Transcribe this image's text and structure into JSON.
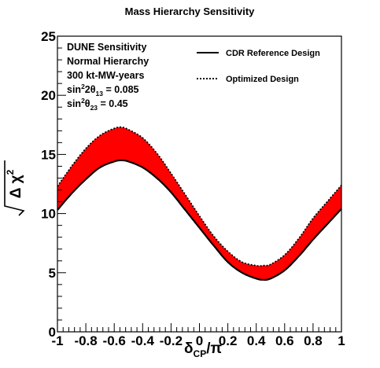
{
  "chart_data": {
    "type": "area",
    "title": "Mass Hierarchy Sensitivity",
    "xlim": [
      -1,
      1
    ],
    "ylim": [
      0,
      25
    ],
    "x_ticks": [
      "-1",
      "-0.8",
      "-0.6",
      "-0.4",
      "-0.2",
      "0",
      "0.2",
      "0.4",
      "0.6",
      "0.8",
      "1"
    ],
    "y_ticks": [
      "0",
      "5",
      "10",
      "15",
      "20",
      "25"
    ],
    "xlabel": {
      "base": "δ",
      "sub": "CP",
      "rest": "/π"
    },
    "ylabel": {
      "sqrt": "Δ χ",
      "sup": "2"
    },
    "info_lines": [
      {
        "text": "DUNE Sensitivity"
      },
      {
        "text": "Normal Hierarchy"
      },
      {
        "text": "300 kt-MW-years"
      },
      {
        "pre": "sin",
        "sup": "2",
        "mid": "2θ",
        "sub": "13",
        "post": " = 0.085"
      },
      {
        "pre": "sin",
        "sup": "2",
        "mid": "θ",
        "sub": "23",
        "post": " = 0.45"
      }
    ],
    "legend": {
      "placement": "top-right",
      "entries": [
        {
          "label": "CDR Reference Design",
          "style": "solid"
        },
        {
          "label": "Optimized Design",
          "style": "dotted"
        }
      ]
    },
    "band_color": "#ff0000",
    "series": [
      {
        "name": "CDR Reference Design",
        "style": "solid",
        "x": [
          -1.0,
          -0.9,
          -0.8,
          -0.7,
          -0.6,
          -0.55,
          -0.5,
          -0.4,
          -0.3,
          -0.2,
          -0.1,
          0.0,
          0.1,
          0.2,
          0.3,
          0.4,
          0.45,
          0.5,
          0.6,
          0.7,
          0.8,
          0.9,
          1.0
        ],
        "y": [
          10.3,
          11.7,
          12.9,
          13.9,
          14.4,
          14.5,
          14.4,
          13.9,
          13.0,
          11.8,
          10.3,
          8.8,
          7.3,
          5.9,
          5.0,
          4.5,
          4.4,
          4.5,
          5.2,
          6.4,
          7.8,
          9.1,
          10.4
        ]
      },
      {
        "name": "Optimized Design",
        "style": "dotted",
        "x": [
          -1.0,
          -0.9,
          -0.8,
          -0.7,
          -0.6,
          -0.55,
          -0.5,
          -0.4,
          -0.3,
          -0.2,
          -0.1,
          0.0,
          0.1,
          0.2,
          0.3,
          0.4,
          0.45,
          0.5,
          0.6,
          0.7,
          0.8,
          0.9,
          1.0
        ],
        "y": [
          12.3,
          14.0,
          15.5,
          16.6,
          17.2,
          17.3,
          17.1,
          16.4,
          15.1,
          13.4,
          11.6,
          9.8,
          8.1,
          6.8,
          5.9,
          5.6,
          5.6,
          5.7,
          6.5,
          7.9,
          9.6,
          11.0,
          12.4
        ]
      }
    ]
  }
}
